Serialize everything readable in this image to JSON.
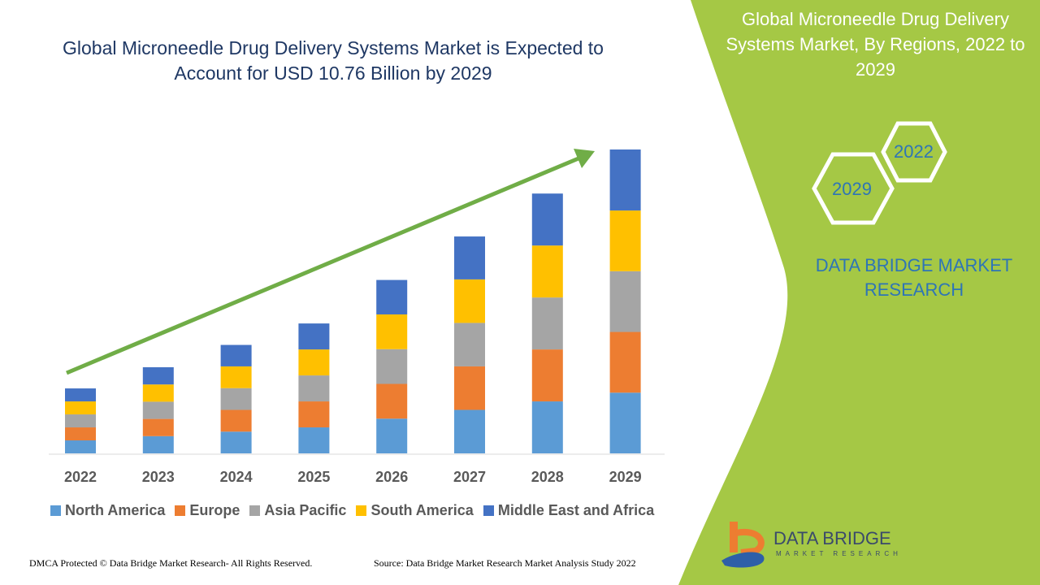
{
  "title": "Global Microneedle Drug Delivery Systems Market is Expected to Account for USD 10.76 Billion by 2029",
  "side_panel": {
    "title": "Global Microneedle Drug Delivery Systems Market, By Regions, 2022 to 2029",
    "hex_start": "2022",
    "hex_end": "2029",
    "brand": "DATA BRIDGE MARKET RESEARCH",
    "logo_text": "DATA BRIDGE",
    "logo_sub": "MARKET RESEARCH",
    "panel_color": "#a5c845"
  },
  "footer": {
    "left": "DMCA Protected © Data Bridge Market Research- All Rights Reserved.",
    "right": "Source: Data Bridge Market Research Market Analysis Study 2022"
  },
  "chart_data": {
    "type": "bar",
    "stacked": true,
    "title": "Global Microneedle Drug Delivery Systems Market is Expected to Account for USD 10.76 Billion by 2029",
    "categories": [
      "2022",
      "2023",
      "2024",
      "2025",
      "2026",
      "2027",
      "2028",
      "2029"
    ],
    "series": [
      {
        "name": "North America",
        "color": "#5b9bd5",
        "values": [
          0.46,
          0.61,
          0.77,
          0.92,
          1.23,
          1.54,
          1.84,
          2.15
        ]
      },
      {
        "name": "Europe",
        "color": "#ed7d31",
        "values": [
          0.46,
          0.61,
          0.77,
          0.92,
          1.23,
          1.54,
          1.84,
          2.15
        ]
      },
      {
        "name": "Asia Pacific",
        "color": "#a5a5a5",
        "values": [
          0.46,
          0.61,
          0.77,
          0.92,
          1.23,
          1.54,
          1.84,
          2.15
        ]
      },
      {
        "name": "South America",
        "color": "#ffc000",
        "values": [
          0.46,
          0.61,
          0.77,
          0.92,
          1.23,
          1.54,
          1.84,
          2.15
        ]
      },
      {
        "name": "Middle East and Africa",
        "color": "#4472c4",
        "values": [
          0.46,
          0.61,
          0.76,
          0.92,
          1.22,
          1.52,
          1.84,
          2.16
        ]
      }
    ],
    "ylim": [
      0,
      10.76
    ],
    "grid": false,
    "legend": "bottom",
    "trend_arrow_color": "#70ad47"
  }
}
